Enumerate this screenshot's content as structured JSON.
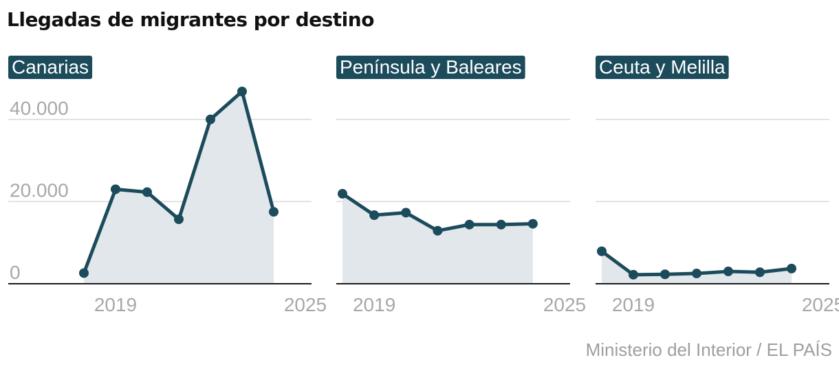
{
  "title": "Llegadas de migrantes por destino",
  "source": "Ministerio del Interior / EL PAÍS",
  "colors": {
    "line": "#1c4b5c",
    "area": "#e1e7ea",
    "label_bg": "#1c4b5c",
    "label_text": "#ffffff",
    "tick_text": "#a8a8a8",
    "grid": "#d9d9d9",
    "axis": "#1a1a1a"
  },
  "chart_data": [
    {
      "type": "area",
      "panel": "Canarias",
      "x": [
        2018,
        2019,
        2020,
        2021,
        2022,
        2023,
        2024,
        2025
      ],
      "y": [
        2600,
        23000,
        22300,
        15700,
        40000,
        46800,
        17500,
        null
      ],
      "ylim": [
        0,
        50000
      ],
      "yticks": [
        0,
        20000,
        40000
      ],
      "ytick_labels": [
        "0",
        "20.000",
        "40.000"
      ],
      "xticks": [
        2019,
        2025
      ],
      "xtick_labels": [
        "2019",
        "2025"
      ],
      "grid": true
    },
    {
      "type": "area",
      "panel": "Península y Baleares",
      "x": [
        2018,
        2019,
        2020,
        2021,
        2022,
        2023,
        2024,
        2025
      ],
      "y": [
        21900,
        16700,
        17300,
        12900,
        14400,
        14400,
        14600,
        null
      ],
      "ylim": [
        0,
        50000
      ],
      "yticks": [
        0,
        20000,
        40000
      ],
      "ytick_labels": [
        "",
        "",
        ""
      ],
      "xticks": [
        2019,
        2025
      ],
      "xtick_labels": [
        "2019",
        "2025"
      ],
      "grid": true
    },
    {
      "type": "area",
      "panel": "Ceuta y Melilla",
      "x": [
        2018,
        2019,
        2020,
        2021,
        2022,
        2023,
        2024,
        2025
      ],
      "y": [
        7900,
        2200,
        2300,
        2500,
        3000,
        2800,
        3700,
        null
      ],
      "ylim": [
        0,
        50000
      ],
      "yticks": [
        0,
        20000,
        40000
      ],
      "ytick_labels": [
        "",
        "",
        ""
      ],
      "xticks": [
        2019,
        2025
      ],
      "xtick_labels": [
        "2019",
        "2025"
      ],
      "grid": true
    }
  ]
}
